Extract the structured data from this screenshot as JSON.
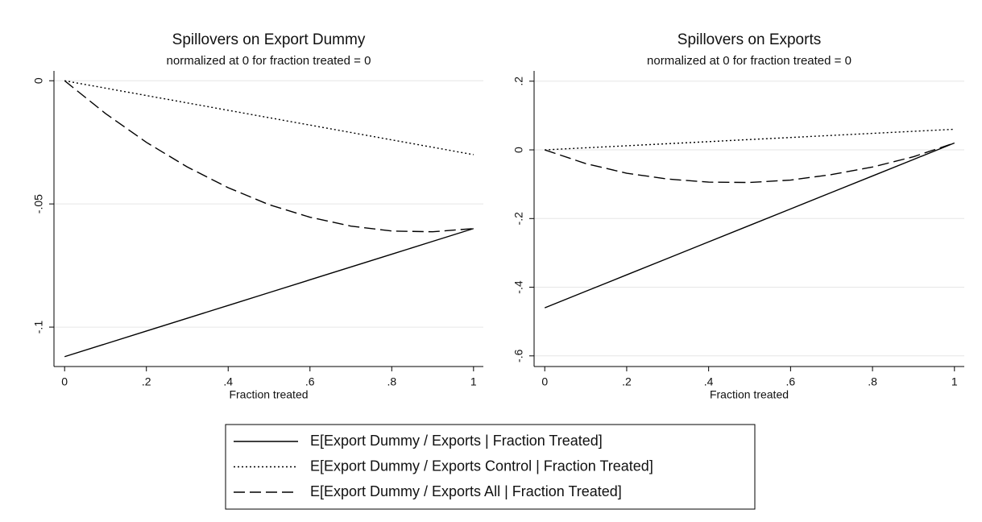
{
  "chart_data": [
    {
      "type": "line",
      "title": "Spillovers on Export Dummy",
      "subtitle": "normalized at 0 for fraction treated = 0",
      "x_label": "Fraction treated",
      "x": [
        0,
        0.1,
        0.2,
        0.3,
        0.4,
        0.5,
        0.6,
        0.7,
        0.8,
        0.9,
        1
      ],
      "xlim": [
        -0.026,
        1.024
      ],
      "xticks": [
        0,
        {
          "value": 0.2,
          "label": ".2"
        },
        {
          "value": 0.4,
          "label": ".4"
        },
        {
          "value": 0.6,
          "label": ".6"
        },
        {
          "value": 0.8,
          "label": ".8"
        },
        1
      ],
      "ylim": [
        -0.116,
        0.004
      ],
      "yticks": [
        {
          "value": -0.1,
          "label": "-.1"
        },
        {
          "value": -0.05,
          "label": "-.05"
        },
        0
      ],
      "grid": true,
      "series": [
        {
          "name": "E[Export Dummy / Exports | Fraction Treated]",
          "color": "#000000",
          "dash": "solid",
          "values": [
            -0.112,
            -0.1068,
            -0.1016,
            -0.0964,
            -0.0912,
            -0.086,
            -0.0808,
            -0.0756,
            -0.0704,
            -0.0652,
            -0.06
          ]
        },
        {
          "name": "E[Export Dummy / Exports Control | Fraction Treated]",
          "color": "#000000",
          "dash": "dotted",
          "values": [
            0,
            -0.003,
            -0.006,
            -0.009,
            -0.012,
            -0.015,
            -0.018,
            -0.021,
            -0.024,
            -0.027,
            -0.03
          ]
        },
        {
          "name": "E[Export Dummy / Exports All | Fraction Treated]",
          "color": "#000000",
          "dash": "dashed",
          "values": [
            0,
            -0.0133,
            -0.025,
            -0.035,
            -0.0434,
            -0.0503,
            -0.0554,
            -0.059,
            -0.061,
            -0.0613,
            -0.06
          ]
        }
      ]
    },
    {
      "type": "line",
      "title": "Spillovers on Exports",
      "subtitle": "normalized at 0 for fraction treated = 0",
      "x_label": "Fraction treated",
      "x": [
        0,
        0.1,
        0.2,
        0.3,
        0.4,
        0.5,
        0.6,
        0.7,
        0.8,
        0.9,
        1
      ],
      "xlim": [
        -0.026,
        1.024
      ],
      "xticks": [
        0,
        {
          "value": 0.2,
          "label": ".2"
        },
        {
          "value": 0.4,
          "label": ".4"
        },
        {
          "value": 0.6,
          "label": ".6"
        },
        {
          "value": 0.8,
          "label": ".8"
        },
        1
      ],
      "ylim": [
        -0.631,
        0.23
      ],
      "yticks": [
        {
          "value": -0.6,
          "label": "-.6"
        },
        {
          "value": -0.4,
          "label": "-.4"
        },
        {
          "value": -0.2,
          "label": "-.2"
        },
        0,
        {
          "value": 0.2,
          "label": ".2"
        }
      ],
      "grid": true,
      "series": [
        {
          "color": "#000000",
          "dash": "solid",
          "values": [
            -0.46,
            -0.412,
            -0.364,
            -0.316,
            -0.268,
            -0.22,
            -0.172,
            -0.124,
            -0.076,
            -0.028,
            0.02
          ]
        },
        {
          "color": "#000000",
          "dash": "dotted",
          "values": [
            0,
            0.006,
            0.012,
            0.018,
            0.024,
            0.03,
            0.036,
            0.042,
            0.048,
            0.054,
            0.06
          ]
        },
        {
          "color": "#000000",
          "dash": "dashed",
          "values": [
            0,
            -0.04,
            -0.068,
            -0.085,
            -0.094,
            -0.095,
            -0.088,
            -0.072,
            -0.05,
            -0.02,
            0.02
          ]
        }
      ]
    }
  ]
}
